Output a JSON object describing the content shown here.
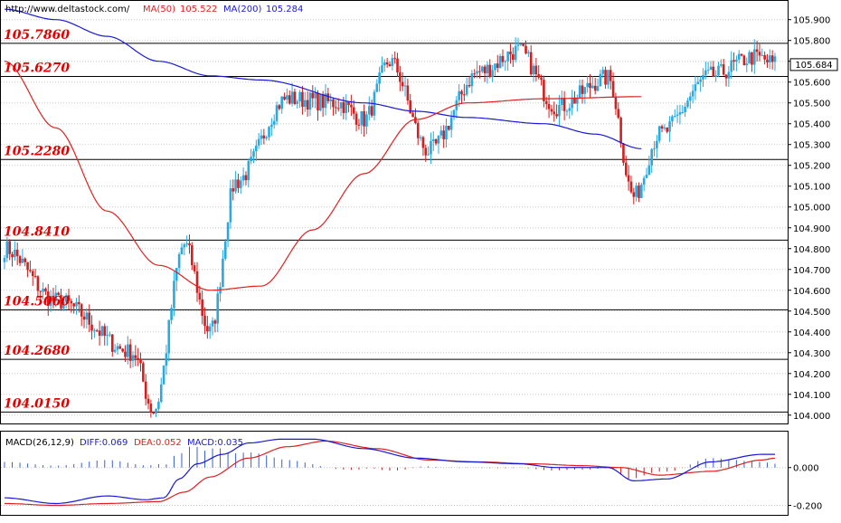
{
  "header": {
    "url": "http://www.deltastock.com/",
    "ma50_label": "MA(50)",
    "ma50_value": "105.522",
    "ma200_label": "MA(200)",
    "ma200_value": "105.284"
  },
  "macd_header": {
    "name": "MACD(26,12,9)",
    "diff": "DIFF:0.069",
    "dea": "DEA:0.052",
    "macd": "MACD:0.035"
  },
  "colors": {
    "up": "#29a9e0",
    "down": "#d02020",
    "ma50": "#e02020",
    "ma200": "#1a1ad6",
    "level": "#000000",
    "level_label": "#e00000",
    "grid": "#c8c8c8"
  },
  "chart_data": [
    {
      "type": "candlestick",
      "title": "",
      "ylim": [
        103.96,
        105.99
      ],
      "y_ticks": [
        "105.900",
        "105.800",
        "105.700",
        "105.600",
        "105.500",
        "105.400",
        "105.300",
        "105.200",
        "105.100",
        "105.000",
        "104.900",
        "104.800",
        "104.700",
        "104.600",
        "104.500",
        "104.400",
        "104.300",
        "104.200",
        "104.100",
        "104.000"
      ],
      "last_price": "105.684",
      "levels": [
        "105.7860",
        "105.6270",
        "105.2280",
        "104.8410",
        "104.5060",
        "104.2680",
        "104.0150"
      ],
      "ma_anchor_values": {
        "MA(50)": [
          [
            0,
            105.7
          ],
          [
            20,
            105.38
          ],
          [
            40,
            104.98
          ],
          [
            60,
            104.72
          ],
          [
            80,
            104.6
          ],
          [
            100,
            104.62
          ],
          [
            120,
            104.89
          ],
          [
            140,
            105.16
          ],
          [
            160,
            105.42
          ],
          [
            180,
            105.5
          ],
          [
            210,
            105.52
          ],
          [
            248,
            105.53
          ]
        ],
        "MA(200)": [
          [
            0,
            105.95
          ],
          [
            20,
            105.9
          ],
          [
            40,
            105.82
          ],
          [
            60,
            105.7
          ],
          [
            80,
            105.63
          ],
          [
            100,
            105.61
          ],
          [
            140,
            105.5
          ],
          [
            160,
            105.46
          ],
          [
            180,
            105.43
          ],
          [
            210,
            105.4
          ],
          [
            230,
            105.35
          ],
          [
            248,
            105.28
          ]
        ]
      },
      "key_points": [
        [
          0,
          104.8
        ],
        [
          20,
          104.55
        ],
        [
          50,
          104.3
        ],
        [
          58,
          104.02
        ],
        [
          70,
          104.82
        ],
        [
          80,
          104.4
        ],
        [
          90,
          105.12
        ],
        [
          110,
          105.52
        ],
        [
          130,
          105.5
        ],
        [
          140,
          105.42
        ],
        [
          150,
          105.7
        ],
        [
          165,
          105.27
        ],
        [
          185,
          105.65
        ],
        [
          200,
          105.75
        ],
        [
          215,
          105.48
        ],
        [
          235,
          105.62
        ],
        [
          245,
          105.05
        ],
        [
          255,
          105.35
        ],
        [
          275,
          105.63
        ],
        [
          292,
          105.72
        ],
        [
          300,
          105.69
        ]
      ]
    },
    {
      "type": "line",
      "title": "",
      "ylim": [
        -0.25,
        0.19
      ],
      "y_ticks": [
        "0.000",
        "-0.200"
      ],
      "series": [
        {
          "name": "DIFF",
          "anchor_values": [
            [
              0,
              -0.16
            ],
            [
              20,
              -0.19
            ],
            [
              40,
              -0.15
            ],
            [
              55,
              -0.17
            ],
            [
              62,
              -0.16
            ],
            [
              68,
              -0.06
            ],
            [
              75,
              0.02
            ],
            [
              85,
              0.07
            ],
            [
              95,
              0.13
            ],
            [
              108,
              0.15
            ],
            [
              120,
              0.15
            ],
            [
              140,
              0.1
            ],
            [
              160,
              0.05
            ],
            [
              180,
              0.03
            ],
            [
              200,
              0.02
            ],
            [
              215,
              0.0
            ],
            [
              235,
              0.0
            ],
            [
              245,
              -0.07
            ],
            [
              258,
              -0.06
            ],
            [
              275,
              0.03
            ],
            [
              295,
              0.07
            ],
            [
              300,
              0.07
            ]
          ]
        },
        {
          "name": "DEA",
          "anchor_values": [
            [
              0,
              -0.19
            ],
            [
              20,
              -0.2
            ],
            [
              40,
              -0.19
            ],
            [
              60,
              -0.18
            ],
            [
              70,
              -0.13
            ],
            [
              80,
              -0.05
            ],
            [
              95,
              0.05
            ],
            [
              110,
              0.11
            ],
            [
              125,
              0.14
            ],
            [
              145,
              0.1
            ],
            [
              165,
              0.04
            ],
            [
              185,
              0.03
            ],
            [
              205,
              0.02
            ],
            [
              225,
              0.01
            ],
            [
              240,
              0.0
            ],
            [
              255,
              -0.04
            ],
            [
              275,
              -0.02
            ],
            [
              295,
              0.04
            ],
            [
              300,
              0.05
            ]
          ]
        }
      ]
    }
  ]
}
